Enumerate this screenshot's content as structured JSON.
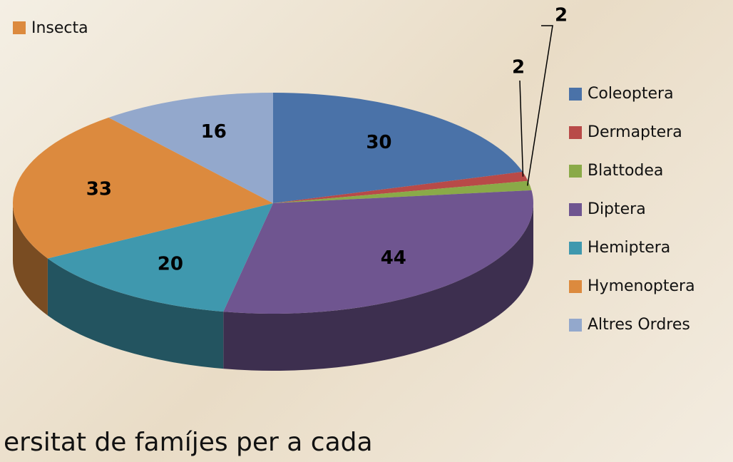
{
  "chart_data": {
    "type": "pie",
    "name": "Insecta",
    "categories": [
      "Coleoptera",
      "Dermaptera",
      "Blattodea",
      "Diptera",
      "Hemiptera",
      "Hymenoptera",
      "Altres Ordres"
    ],
    "values": [
      30,
      2,
      2,
      44,
      20,
      33,
      16
    ],
    "colors": [
      "#4a72a8",
      "#b84a48",
      "#8aaa48",
      "#6f5590",
      "#3f98ae",
      "#dc8a3e",
      "#93a8cc"
    ],
    "legend": "right",
    "caption": "ersitat de famíjes per a cada"
  }
}
